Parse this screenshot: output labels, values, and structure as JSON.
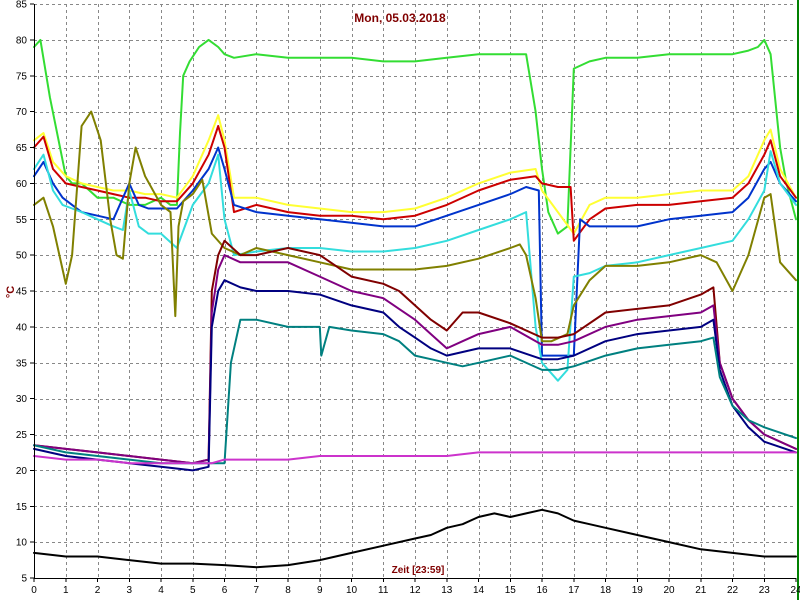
{
  "chart_data": {
    "type": "line",
    "title": "Mon, 05.03.2018",
    "xlabel": "Zeit [23:59]",
    "ylabel": "°C",
    "xlim": [
      0,
      24
    ],
    "ylim": [
      5,
      85
    ],
    "x_ticks": [
      0,
      1,
      2,
      3,
      4,
      5,
      6,
      7,
      8,
      9,
      10,
      11,
      12,
      13,
      14,
      15,
      16,
      17,
      18,
      19,
      20,
      21,
      22,
      23,
      24
    ],
    "y_ticks": [
      5,
      10,
      15,
      20,
      25,
      30,
      35,
      40,
      45,
      50,
      55,
      60,
      65,
      70,
      75,
      80,
      85
    ],
    "grid": true,
    "legend": "none",
    "colors": {
      "title": "#800000",
      "xlabel": "#800000",
      "ylabel": "#800000",
      "border_right": "#008000"
    },
    "series": [
      {
        "color": "#33dd33",
        "x": [
          0,
          0.2,
          0.5,
          1.0,
          1.2,
          1.5,
          2.0,
          2.5,
          3.0,
          3.5,
          4.0,
          4.3,
          4.5,
          4.6,
          4.7,
          4.9,
          5.2,
          5.5,
          5.8,
          6.0,
          6.3,
          7,
          8,
          9,
          10,
          11,
          12,
          13,
          14,
          15,
          15.5,
          15.8,
          16.0,
          16.2,
          16.5,
          16.8,
          17.0,
          17.5,
          18,
          19,
          20,
          21,
          22,
          22.5,
          22.8,
          23.0,
          23.2,
          23.5,
          23.7,
          24
        ],
        "y": [
          79,
          80,
          72,
          61,
          60,
          60,
          58,
          58,
          57,
          57,
          58,
          57,
          57,
          67,
          75,
          77,
          79,
          80,
          79,
          78,
          77.5,
          78,
          77.5,
          77.5,
          77.5,
          77,
          77,
          77.5,
          78,
          78,
          78,
          70,
          62,
          56,
          53,
          54,
          76,
          77,
          77.5,
          77.5,
          78,
          78,
          78,
          78.5,
          79,
          80,
          78,
          65,
          60,
          55
        ]
      },
      {
        "color": "#ffff33",
        "x": [
          0,
          0.3,
          0.6,
          1.0,
          1.5,
          2,
          2.5,
          3,
          3.5,
          4,
          4.5,
          5,
          5.5,
          5.8,
          6.0,
          6.3,
          7,
          8,
          9,
          10,
          11,
          12,
          13,
          14,
          15,
          15.8,
          16.0,
          16.5,
          17.0,
          17.5,
          18,
          19,
          20,
          21,
          22,
          22.5,
          23.0,
          23.2,
          23.5,
          24
        ],
        "y": [
          66,
          67,
          63,
          61,
          60,
          59.5,
          59,
          59,
          58.5,
          58.5,
          58,
          61,
          66,
          69.5,
          66,
          58,
          58,
          57,
          56.5,
          56,
          56,
          56.5,
          58,
          60,
          61.5,
          62,
          59,
          56,
          53,
          57,
          58,
          58,
          58.5,
          59,
          59,
          61,
          66,
          67.5,
          62,
          58
        ]
      },
      {
        "color": "#cc0000",
        "x": [
          0,
          0.3,
          0.6,
          1.0,
          1.5,
          2,
          2.5,
          3,
          3.5,
          4,
          4.5,
          5,
          5.5,
          5.8,
          6.0,
          6.3,
          7,
          8,
          9,
          10,
          11,
          12,
          13,
          14,
          15,
          15.8,
          16.0,
          16.5,
          16.9,
          17.0,
          17.5,
          18,
          19,
          20,
          21,
          22,
          22.5,
          23.0,
          23.2,
          23.5,
          24
        ],
        "y": [
          65,
          66.5,
          62,
          60,
          59.5,
          59,
          58.5,
          58,
          58,
          57.5,
          57.5,
          60,
          64,
          68,
          65,
          56,
          57,
          56,
          55.5,
          55.5,
          55,
          55.5,
          57,
          59,
          60.5,
          61,
          60,
          59.5,
          59.5,
          52,
          55,
          56.5,
          57,
          57,
          57.5,
          58,
          60,
          64,
          66,
          61,
          58
        ]
      },
      {
        "color": "#0033cc",
        "x": [
          0,
          0.3,
          0.6,
          0.9,
          1.2,
          1.5,
          2,
          2.5,
          3.0,
          3.3,
          3.6,
          4,
          4.5,
          5.0,
          5.5,
          5.8,
          6.0,
          6.3,
          7,
          8,
          9,
          10,
          11,
          12,
          13,
          14,
          15,
          15.5,
          15.9,
          16.0,
          16.5,
          17.0,
          17.2,
          17.5,
          18,
          19,
          20,
          21,
          22,
          22.5,
          23.0,
          23.2,
          23.5,
          24
        ],
        "y": [
          61,
          63,
          60,
          58,
          57,
          56,
          55.5,
          55,
          60,
          57,
          56.5,
          56.5,
          56.5,
          59,
          62,
          65,
          62,
          57,
          56,
          55.5,
          55,
          54.5,
          54,
          54,
          55.5,
          57,
          58.5,
          59.5,
          59,
          36,
          36,
          36,
          55,
          54,
          54,
          54,
          55,
          55.5,
          56,
          58,
          62,
          63,
          60,
          57.5
        ]
      },
      {
        "color": "#33dddd",
        "x": [
          0,
          0.3,
          0.6,
          0.9,
          1.2,
          1.5,
          2,
          2.5,
          2.8,
          3.0,
          3.3,
          3.6,
          4,
          4.5,
          5.0,
          5.5,
          5.8,
          6.0,
          6.3,
          7,
          8,
          9,
          10,
          11,
          12,
          13,
          14,
          15,
          15.5,
          15.8,
          16.0,
          16.5,
          16.8,
          17.0,
          17.5,
          18,
          19,
          20,
          21,
          22,
          22.5,
          23.0,
          23.2,
          23.5,
          24
        ],
        "y": [
          62,
          64,
          59,
          57,
          56.5,
          56,
          55,
          54,
          53.5,
          59,
          54,
          53,
          53,
          51,
          57,
          60,
          64,
          55,
          50,
          50.5,
          51,
          51,
          50.5,
          50.5,
          51,
          52,
          53.5,
          55,
          56,
          40,
          35,
          32.5,
          34,
          47,
          47.5,
          48.5,
          49,
          50,
          51,
          52,
          55,
          59,
          64.5,
          60,
          57
        ]
      },
      {
        "color": "#808000",
        "x": [
          0,
          0.3,
          0.6,
          0.9,
          1.0,
          1.2,
          1.5,
          1.8,
          2.1,
          2.4,
          2.6,
          2.8,
          3.0,
          3.2,
          3.5,
          4.0,
          4.3,
          4.45,
          4.55,
          4.7,
          5.0,
          5.3,
          5.6,
          6.0,
          6.5,
          7,
          8,
          9,
          10,
          11,
          12,
          13,
          14,
          15,
          15.3,
          15.5,
          15.8,
          16.0,
          16.3,
          16.8,
          17.0,
          17.5,
          18,
          19,
          20,
          21,
          21.5,
          22.0,
          22.5,
          23.0,
          23.2,
          23.5,
          24
        ],
        "y": [
          57,
          58,
          54,
          48,
          46,
          50,
          68,
          70,
          66,
          55,
          50,
          49.5,
          60,
          65,
          61,
          57,
          56,
          41.5,
          54,
          57.5,
          58.5,
          60.5,
          53,
          51,
          50,
          51,
          50,
          49,
          48,
          48,
          48,
          48.5,
          49.5,
          51,
          51.5,
          50,
          44,
          38,
          38,
          39,
          43,
          46.5,
          48.5,
          48.5,
          49,
          50,
          49,
          45,
          50,
          58,
          58.5,
          49,
          46.5
        ]
      },
      {
        "color": "#800000",
        "x": [
          0,
          1,
          2,
          3,
          4,
          5.0,
          5.5,
          5.6,
          5.8,
          6.0,
          6.5,
          7,
          8,
          9,
          10,
          11,
          11.5,
          12,
          12.5,
          13.0,
          13.5,
          14,
          15,
          16,
          16.5,
          17,
          18,
          19,
          20,
          21,
          21.4,
          21.6,
          22.0,
          22.5,
          23,
          24
        ],
        "y": [
          23.5,
          23,
          22.5,
          22,
          21.5,
          21,
          21.5,
          45,
          50,
          52,
          50,
          50,
          51,
          50,
          47,
          46,
          45,
          43,
          41,
          39.5,
          42,
          42,
          40.5,
          38.5,
          38.5,
          39,
          42,
          42.5,
          43,
          44.5,
          45.5,
          35,
          30,
          27,
          25,
          23
        ]
      },
      {
        "color": "#800080",
        "x": [
          0,
          1,
          2,
          3,
          4,
          5.0,
          5.5,
          5.6,
          5.8,
          6.0,
          6.5,
          7,
          8,
          9,
          10,
          11,
          11.5,
          12,
          12.5,
          13.0,
          13.5,
          14,
          15,
          16,
          16.5,
          17,
          18,
          19,
          20,
          21,
          21.4,
          21.6,
          22.0,
          22.5,
          23,
          24
        ],
        "y": [
          23.5,
          23,
          22.5,
          22,
          21.5,
          21,
          21.5,
          42,
          48,
          50,
          49,
          49,
          49,
          47,
          45,
          44,
          42.5,
          41,
          39,
          37,
          38,
          39,
          40,
          37.5,
          37.5,
          38,
          40,
          41,
          41.5,
          42,
          43,
          35,
          30,
          27,
          25,
          23
        ]
      },
      {
        "color": "#000080",
        "x": [
          0,
          1,
          2,
          3,
          4,
          5.0,
          5.5,
          5.6,
          5.8,
          6.0,
          6.5,
          7,
          8,
          9,
          10,
          11,
          11.5,
          12,
          12.5,
          13.0,
          13.5,
          14,
          15,
          16,
          16.5,
          17,
          18,
          19,
          20,
          21,
          21.4,
          21.6,
          22.0,
          22.5,
          23,
          24
        ],
        "y": [
          23,
          22,
          21.5,
          21,
          20.5,
          20,
          20.5,
          40,
          45,
          46.5,
          45.5,
          45,
          45,
          44.5,
          43,
          42,
          40,
          38.5,
          37,
          36,
          36.5,
          37,
          37,
          35.5,
          35.5,
          36,
          38,
          39,
          39.5,
          40,
          41,
          34,
          29,
          26,
          24,
          22.5
        ]
      },
      {
        "color": "#008080",
        "x": [
          0,
          1,
          2,
          3,
          4,
          5.0,
          5.5,
          6.0,
          6.2,
          6.5,
          7,
          8,
          9,
          9.05,
          9.3,
          10,
          11,
          11.5,
          12,
          12.5,
          13.0,
          13.5,
          14,
          15,
          16,
          16.5,
          17,
          18,
          19,
          20,
          21,
          21.4,
          21.6,
          22.0,
          22.5,
          23,
          24
        ],
        "y": [
          23.5,
          22.5,
          22,
          21.5,
          21,
          21,
          21,
          21,
          35,
          41,
          41,
          40,
          40,
          36,
          40,
          39.5,
          39,
          38,
          36,
          35.5,
          35,
          34.5,
          35,
          36,
          34,
          34,
          34.5,
          36,
          37,
          37.5,
          38,
          38.5,
          33,
          29,
          27,
          26,
          24.5
        ]
      },
      {
        "color": "#cc33cc",
        "x": [
          0,
          1,
          2,
          3,
          4,
          5,
          5.5,
          5.6,
          6,
          7,
          8,
          9,
          10,
          11,
          12,
          13,
          14,
          15,
          16,
          17,
          18,
          19,
          20,
          21,
          22,
          23,
          24
        ],
        "y": [
          22,
          21.5,
          21.5,
          21,
          21,
          21,
          21,
          21,
          21.5,
          21.5,
          21.5,
          22,
          22,
          22,
          22,
          22,
          22.5,
          22.5,
          22.5,
          22.5,
          22.5,
          22.5,
          22.5,
          22.5,
          22.5,
          22.5,
          22.5
        ]
      },
      {
        "color": "#000000",
        "x": [
          0,
          1,
          2,
          3,
          4,
          5,
          6,
          7,
          8,
          9,
          10,
          11,
          12,
          12.5,
          13,
          13.5,
          14,
          14.5,
          15,
          15.5,
          16,
          16.5,
          17,
          17.5,
          18,
          19,
          20,
          21,
          22,
          23,
          24
        ],
        "y": [
          8.5,
          8,
          8,
          7.5,
          7,
          7,
          6.8,
          6.5,
          6.8,
          7.5,
          8.5,
          9.5,
          10.5,
          11,
          12,
          12.5,
          13.5,
          14,
          13.5,
          14,
          14.5,
          14,
          13,
          12.5,
          12,
          11,
          10,
          9,
          8.5,
          8,
          8
        ]
      }
    ]
  }
}
